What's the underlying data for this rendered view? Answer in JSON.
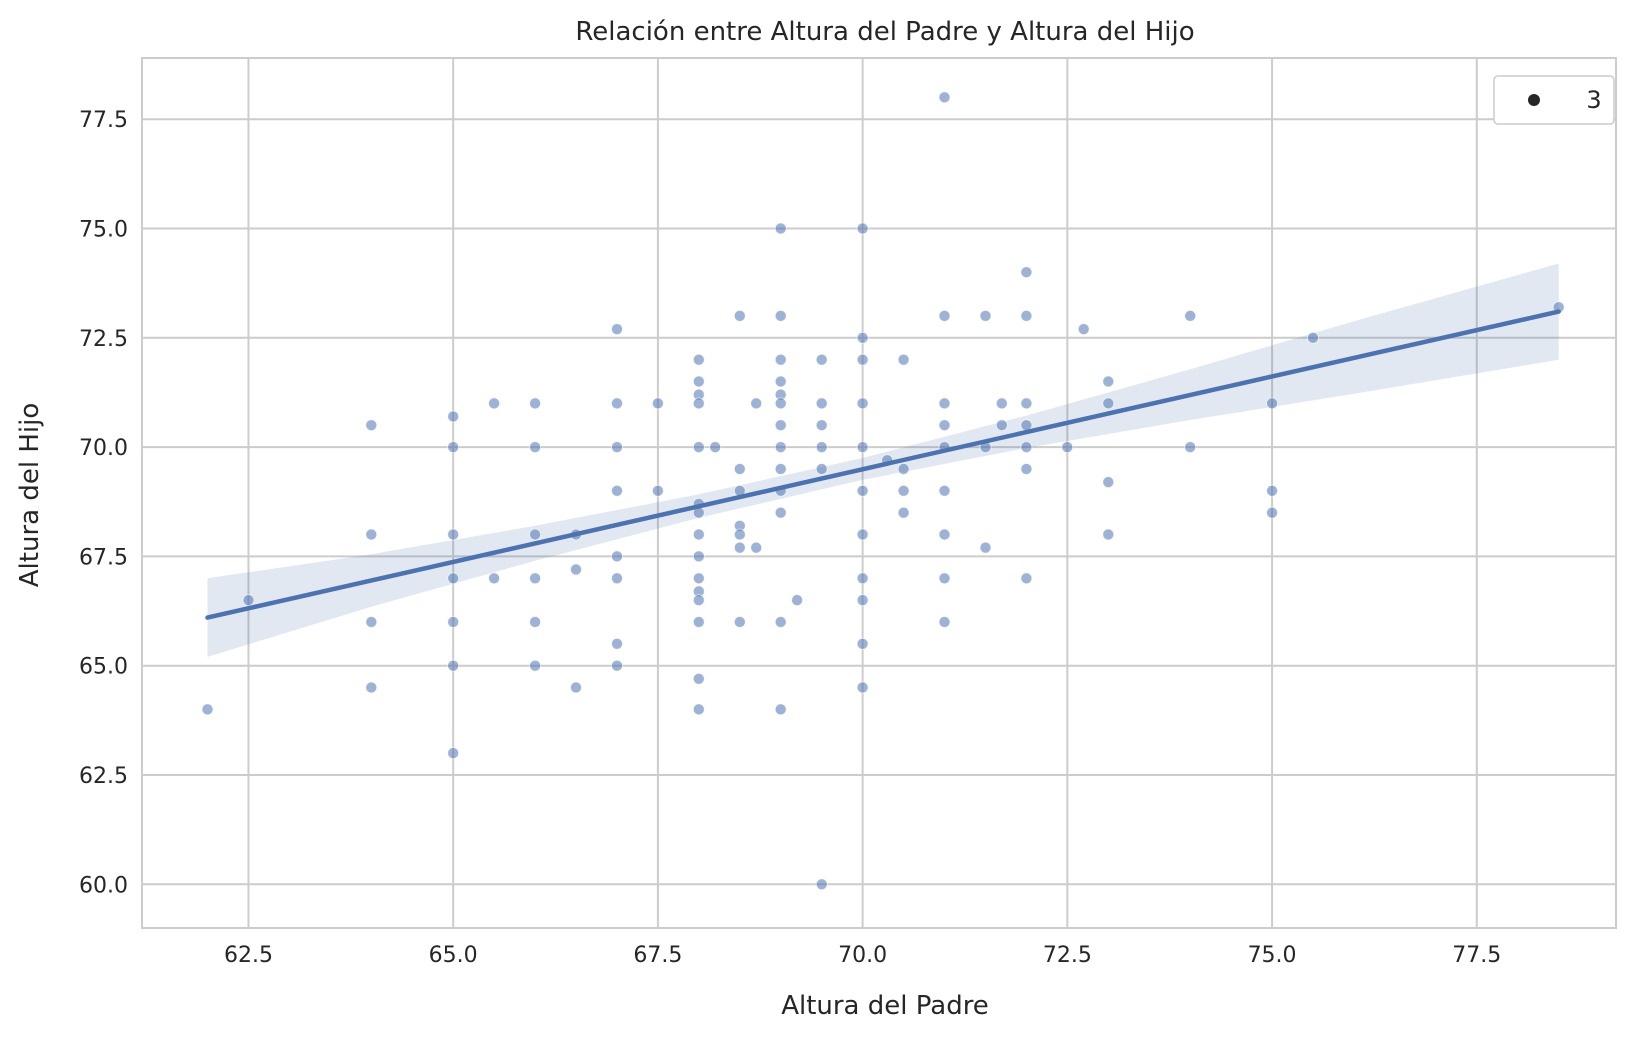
{
  "chart_data": {
    "type": "scatter",
    "title": "Relación entre Altura del Padre y Altura del Hijo",
    "xlabel": "Altura del Padre",
    "ylabel": "Altura del Hijo",
    "xlim": [
      61.2,
      79.2
    ],
    "ylim": [
      59.0,
      78.9
    ],
    "xticks": [
      "62.5",
      "65.0",
      "67.5",
      "70.0",
      "72.5",
      "75.0",
      "77.5"
    ],
    "yticks": [
      "60.0",
      "62.5",
      "65.0",
      "67.5",
      "70.0",
      "72.5",
      "75.0",
      "77.5"
    ],
    "grid": true,
    "legend": {
      "placement": "top-right",
      "entries": [
        "3"
      ]
    },
    "colors": {
      "points": "#4c72b0",
      "line": "#4c72b0",
      "band": "#4c72b0",
      "grid": "#cccccc",
      "axes": "#cccccc"
    },
    "series": [
      {
        "points": [
          [
            62,
            64
          ],
          [
            62.5,
            66.5
          ],
          [
            64,
            70.5
          ],
          [
            64,
            68
          ],
          [
            64,
            66
          ],
          [
            64,
            64.5
          ],
          [
            65,
            70.7
          ],
          [
            65,
            70
          ],
          [
            65,
            68
          ],
          [
            65,
            67
          ],
          [
            65,
            66
          ],
          [
            65,
            65
          ],
          [
            65,
            63
          ],
          [
            65.5,
            71
          ],
          [
            65.5,
            67
          ],
          [
            66,
            71
          ],
          [
            66,
            70
          ],
          [
            66,
            68
          ],
          [
            66,
            67
          ],
          [
            66,
            66
          ],
          [
            66,
            65
          ],
          [
            66.5,
            68
          ],
          [
            66.5,
            67.2
          ],
          [
            66.5,
            64.5
          ],
          [
            67,
            72.7
          ],
          [
            67,
            71
          ],
          [
            67,
            70
          ],
          [
            67,
            69
          ],
          [
            67,
            67.5
          ],
          [
            67,
            67
          ],
          [
            67,
            65.5
          ],
          [
            67,
            65
          ],
          [
            67.5,
            71
          ],
          [
            67.5,
            69
          ],
          [
            68,
            72
          ],
          [
            68,
            71.5
          ],
          [
            68,
            71.2
          ],
          [
            68,
            71
          ],
          [
            68,
            70
          ],
          [
            68,
            68.7
          ],
          [
            68,
            68.5
          ],
          [
            68,
            68
          ],
          [
            68,
            67.5
          ],
          [
            68,
            67
          ],
          [
            68,
            66.7
          ],
          [
            68,
            66.5
          ],
          [
            68,
            66
          ],
          [
            68,
            64.7
          ],
          [
            68,
            64
          ],
          [
            68.2,
            70
          ],
          [
            68.5,
            73
          ],
          [
            68.5,
            69.5
          ],
          [
            68.5,
            69
          ],
          [
            68.5,
            68.2
          ],
          [
            68.5,
            68
          ],
          [
            68.5,
            67.7
          ],
          [
            68.5,
            66
          ],
          [
            68.7,
            71
          ],
          [
            68.7,
            67.7
          ],
          [
            69,
            75
          ],
          [
            69,
            73
          ],
          [
            69,
            72
          ],
          [
            69,
            71.5
          ],
          [
            69,
            71.2
          ],
          [
            69,
            71
          ],
          [
            69,
            70.5
          ],
          [
            69,
            70
          ],
          [
            69,
            69.5
          ],
          [
            69,
            69
          ],
          [
            69,
            68.5
          ],
          [
            69,
            66
          ],
          [
            69,
            64
          ],
          [
            69.2,
            66.5
          ],
          [
            69.5,
            72
          ],
          [
            69.5,
            71
          ],
          [
            69.5,
            70.5
          ],
          [
            69.5,
            70
          ],
          [
            69.5,
            69.5
          ],
          [
            69.5,
            60
          ],
          [
            70,
            75
          ],
          [
            70,
            72.5
          ],
          [
            70,
            72
          ],
          [
            70,
            71
          ],
          [
            70,
            70
          ],
          [
            70,
            69
          ],
          [
            70,
            68
          ],
          [
            70,
            67
          ],
          [
            70,
            66.5
          ],
          [
            70,
            65.5
          ],
          [
            70,
            64.5
          ],
          [
            70.3,
            69.7
          ],
          [
            70.5,
            72
          ],
          [
            70.5,
            69.5
          ],
          [
            70.5,
            69
          ],
          [
            70.5,
            68.5
          ],
          [
            71,
            78
          ],
          [
            71,
            73
          ],
          [
            71,
            71
          ],
          [
            71,
            70.5
          ],
          [
            71,
            70
          ],
          [
            71,
            69
          ],
          [
            71,
            68
          ],
          [
            71,
            67
          ],
          [
            71,
            66
          ],
          [
            71.5,
            73
          ],
          [
            71.5,
            70
          ],
          [
            71.5,
            67.7
          ],
          [
            71.7,
            71
          ],
          [
            71.7,
            70.5
          ],
          [
            72,
            74
          ],
          [
            72,
            73
          ],
          [
            72,
            71
          ],
          [
            72,
            70.5
          ],
          [
            72,
            70
          ],
          [
            72,
            69.5
          ],
          [
            72,
            67
          ],
          [
            72.5,
            70
          ],
          [
            72.7,
            72.7
          ],
          [
            73,
            71.5
          ],
          [
            73,
            71
          ],
          [
            73,
            69.2
          ],
          [
            73,
            68
          ],
          [
            74,
            73
          ],
          [
            74,
            70
          ],
          [
            75,
            71
          ],
          [
            75,
            69
          ],
          [
            75,
            68.5
          ],
          [
            75.5,
            72.5
          ],
          [
            78.5,
            73.2
          ]
        ]
      }
    ],
    "regression": {
      "x": [
        62,
        64,
        66,
        68,
        70,
        72,
        74,
        76,
        78.5
      ],
      "y": [
        66.1,
        66.95,
        67.8,
        68.65,
        69.5,
        70.35,
        71.2,
        72.05,
        73.1
      ],
      "ci_lower": [
        65.2,
        66.35,
        67.4,
        68.38,
        69.25,
        69.98,
        70.62,
        71.22,
        72.0
      ],
      "ci_upper": [
        67.0,
        67.55,
        68.2,
        68.92,
        69.75,
        70.72,
        71.78,
        72.88,
        74.2
      ]
    }
  }
}
